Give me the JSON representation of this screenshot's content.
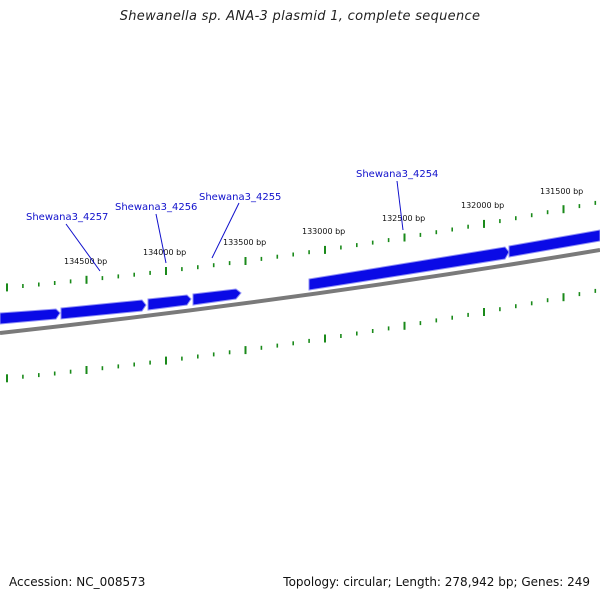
{
  "title": "Shewanella sp. ANA-3 plasmid 1, complete sequence",
  "footer": {
    "accession": "Accession: NC_008573",
    "summary": "Topology: circular; Length: 278,942 bp; Genes: 249"
  },
  "colors": {
    "gene": "#0a0ae6",
    "gene_edge": "#8f8ff5",
    "backbone": "#7a7a7a",
    "tick": "#1a8a1a",
    "label_line": "#1010cc"
  },
  "scale_labels": [
    "134500 bp",
    "134000 bp",
    "133500 bp",
    "133000 bp",
    "132500 bp",
    "132000 bp",
    "131500 bp"
  ],
  "gene_labels": [
    "Shewana3_4257",
    "Shewana3_4256",
    "Shewana3_4255",
    "Shewana3_4254"
  ]
}
